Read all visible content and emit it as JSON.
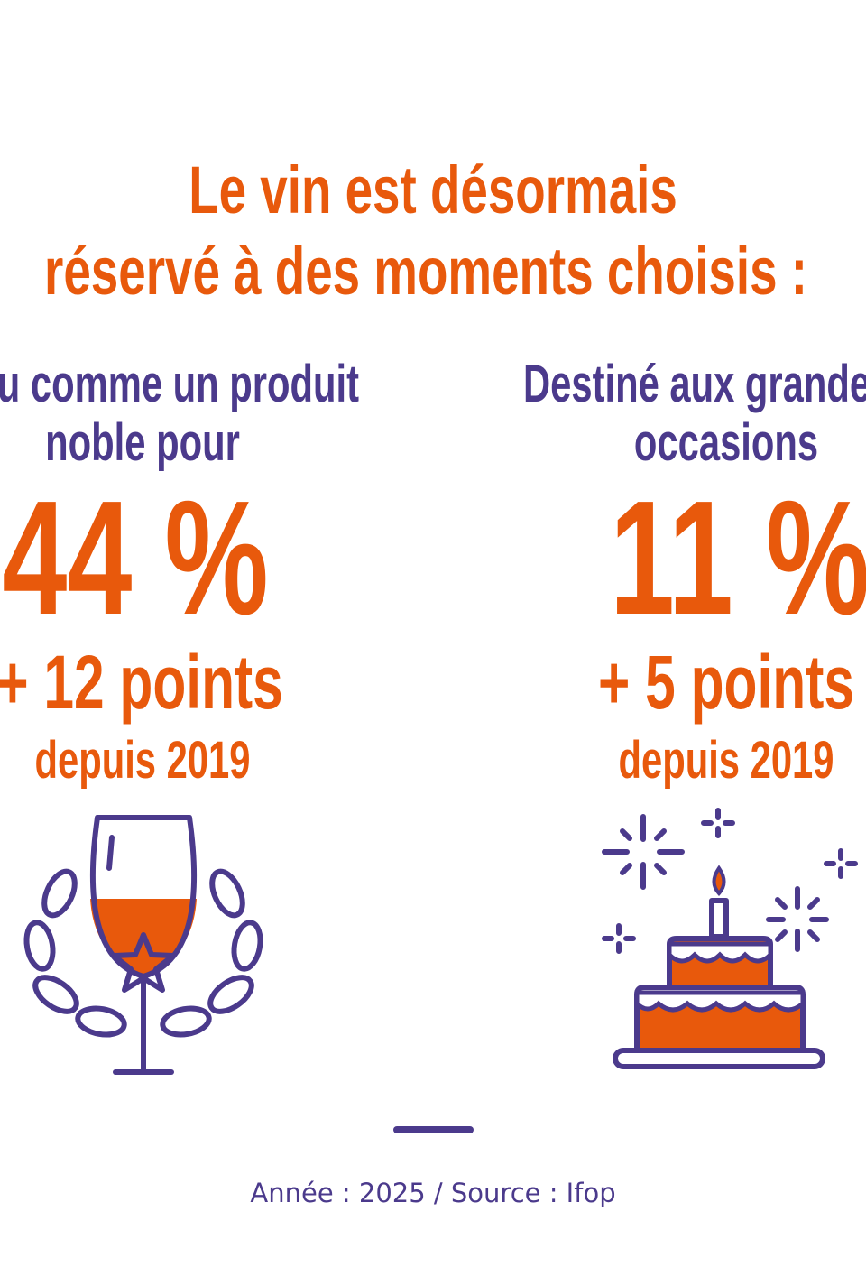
{
  "title": {
    "lines": [
      "Le vin est désormais",
      "réservé à des moments choisis :"
    ]
  },
  "columns": [
    {
      "label_lines": [
        "Perçu comme un produit",
        "noble pour"
      ],
      "value": "44 %",
      "change": "+ 12 points",
      "since": "depuis 2019"
    },
    {
      "label_lines": [
        "Destiné aux grandes",
        "occasions"
      ],
      "value": "11 %",
      "change": "+ 5 points",
      "since": "depuis 2019"
    }
  ],
  "footer": "Année : 2025 / Source : Ifop"
}
